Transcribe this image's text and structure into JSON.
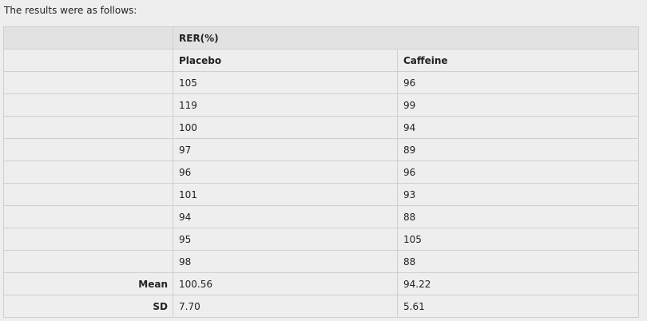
{
  "intro_text": "The results were as follows:",
  "table": {
    "group_header": "RER(%)",
    "columns": [
      "Placebo",
      "Caffeine"
    ],
    "rows": [
      {
        "label": "",
        "placebo": "105",
        "caffeine": "96"
      },
      {
        "label": "",
        "placebo": "119",
        "caffeine": "99"
      },
      {
        "label": "",
        "placebo": "100",
        "caffeine": "94"
      },
      {
        "label": "",
        "placebo": "97",
        "caffeine": "89"
      },
      {
        "label": "",
        "placebo": "96",
        "caffeine": "96"
      },
      {
        "label": "",
        "placebo": "101",
        "caffeine": "93"
      },
      {
        "label": "",
        "placebo": "94",
        "caffeine": "88"
      },
      {
        "label": "",
        "placebo": "95",
        "caffeine": "105"
      },
      {
        "label": "",
        "placebo": "98",
        "caffeine": "88"
      },
      {
        "label": "Mean",
        "placebo": "100.56",
        "caffeine": "94.22"
      },
      {
        "label": "SD",
        "placebo": "7.70",
        "caffeine": "5.61"
      }
    ]
  }
}
